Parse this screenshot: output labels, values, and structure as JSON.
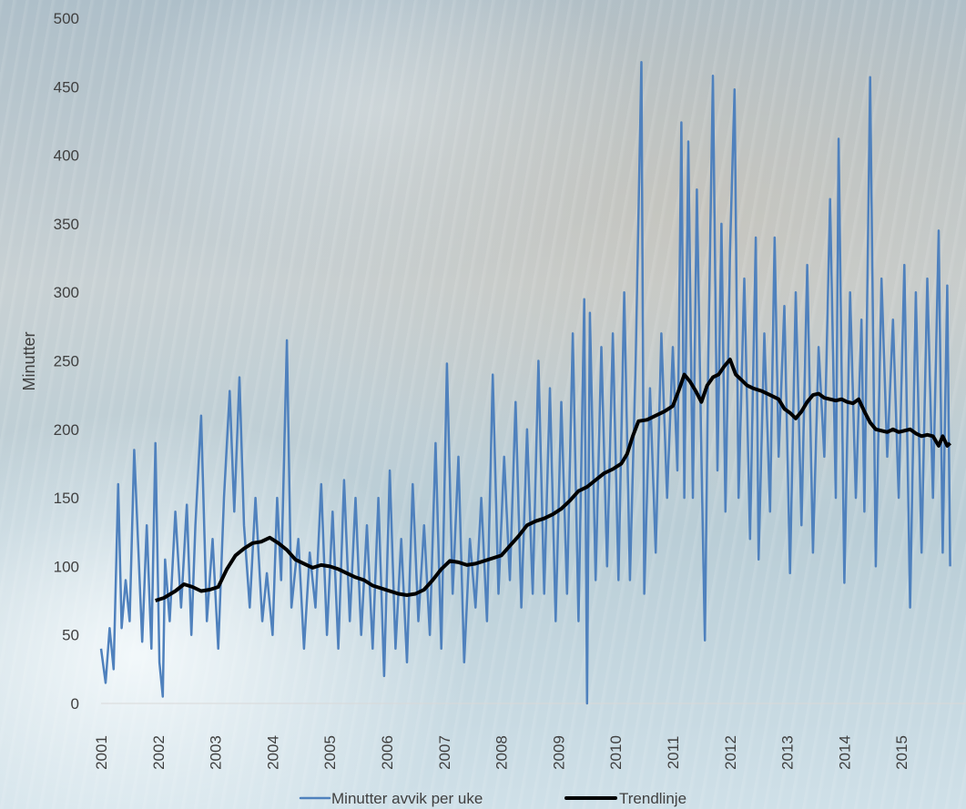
{
  "chart_data": {
    "type": "line",
    "ylabel": "Minutter",
    "ylim": [
      0,
      500
    ],
    "yticks": [
      "0",
      "50",
      "100",
      "150",
      "200",
      "250",
      "300",
      "350",
      "400",
      "450",
      "500"
    ],
    "xticks": [
      "2001",
      "2002",
      "2003",
      "2004",
      "2005",
      "2006",
      "2007",
      "2008",
      "2009",
      "2010",
      "2011",
      "2012",
      "2013",
      "2014",
      "2015"
    ],
    "xlim": [
      2001.0,
      2015.85
    ],
    "grid": false,
    "legend_position": "bottom",
    "series": [
      {
        "name": "Minutter avvik per uke",
        "color": "#4f81bd",
        "points": [
          [
            2001.0,
            40
          ],
          [
            2001.08,
            15
          ],
          [
            2001.15,
            55
          ],
          [
            2001.22,
            25
          ],
          [
            2001.3,
            160
          ],
          [
            2001.36,
            55
          ],
          [
            2001.43,
            90
          ],
          [
            2001.5,
            60
          ],
          [
            2001.58,
            185
          ],
          [
            2001.65,
            115
          ],
          [
            2001.72,
            45
          ],
          [
            2001.8,
            130
          ],
          [
            2001.88,
            40
          ],
          [
            2001.95,
            190
          ],
          [
            2002.02,
            30
          ],
          [
            2002.08,
            5
          ],
          [
            2002.12,
            105
          ],
          [
            2002.2,
            60
          ],
          [
            2002.3,
            140
          ],
          [
            2002.4,
            70
          ],
          [
            2002.5,
            145
          ],
          [
            2002.58,
            50
          ],
          [
            2002.65,
            130
          ],
          [
            2002.75,
            210
          ],
          [
            2002.85,
            60
          ],
          [
            2002.95,
            120
          ],
          [
            2003.05,
            40
          ],
          [
            2003.15,
            150
          ],
          [
            2003.25,
            228
          ],
          [
            2003.33,
            140
          ],
          [
            2003.42,
            238
          ],
          [
            2003.5,
            130
          ],
          [
            2003.6,
            70
          ],
          [
            2003.7,
            150
          ],
          [
            2003.82,
            60
          ],
          [
            2003.9,
            95
          ],
          [
            2004.0,
            50
          ],
          [
            2004.08,
            150
          ],
          [
            2004.15,
            90
          ],
          [
            2004.25,
            265
          ],
          [
            2004.33,
            70
          ],
          [
            2004.45,
            120
          ],
          [
            2004.55,
            40
          ],
          [
            2004.65,
            110
          ],
          [
            2004.75,
            70
          ],
          [
            2004.85,
            160
          ],
          [
            2004.95,
            50
          ],
          [
            2005.05,
            140
          ],
          [
            2005.15,
            40
          ],
          [
            2005.25,
            163
          ],
          [
            2005.35,
            60
          ],
          [
            2005.45,
            150
          ],
          [
            2005.55,
            50
          ],
          [
            2005.65,
            130
          ],
          [
            2005.75,
            40
          ],
          [
            2005.85,
            150
          ],
          [
            2005.95,
            20
          ],
          [
            2006.05,
            170
          ],
          [
            2006.15,
            40
          ],
          [
            2006.25,
            120
          ],
          [
            2006.35,
            30
          ],
          [
            2006.45,
            160
          ],
          [
            2006.55,
            60
          ],
          [
            2006.65,
            130
          ],
          [
            2006.75,
            50
          ],
          [
            2006.85,
            190
          ],
          [
            2006.95,
            40
          ],
          [
            2007.05,
            248
          ],
          [
            2007.15,
            80
          ],
          [
            2007.25,
            180
          ],
          [
            2007.35,
            30
          ],
          [
            2007.45,
            120
          ],
          [
            2007.55,
            70
          ],
          [
            2007.65,
            150
          ],
          [
            2007.75,
            60
          ],
          [
            2007.85,
            240
          ],
          [
            2007.95,
            80
          ],
          [
            2008.05,
            180
          ],
          [
            2008.15,
            90
          ],
          [
            2008.25,
            220
          ],
          [
            2008.35,
            70
          ],
          [
            2008.45,
            200
          ],
          [
            2008.55,
            80
          ],
          [
            2008.65,
            250
          ],
          [
            2008.75,
            80
          ],
          [
            2008.85,
            230
          ],
          [
            2008.95,
            60
          ],
          [
            2009.05,
            220
          ],
          [
            2009.15,
            80
          ],
          [
            2009.25,
            270
          ],
          [
            2009.35,
            60
          ],
          [
            2009.45,
            295
          ],
          [
            2009.5,
            0
          ],
          [
            2009.55,
            285
          ],
          [
            2009.65,
            90
          ],
          [
            2009.75,
            260
          ],
          [
            2009.85,
            100
          ],
          [
            2009.95,
            270
          ],
          [
            2010.05,
            90
          ],
          [
            2010.15,
            300
          ],
          [
            2010.25,
            90
          ],
          [
            2010.35,
            250
          ],
          [
            2010.45,
            468
          ],
          [
            2010.5,
            80
          ],
          [
            2010.6,
            230
          ],
          [
            2010.7,
            110
          ],
          [
            2010.8,
            270
          ],
          [
            2010.9,
            150
          ],
          [
            2011.0,
            260
          ],
          [
            2011.08,
            170
          ],
          [
            2011.15,
            424
          ],
          [
            2011.2,
            150
          ],
          [
            2011.27,
            410
          ],
          [
            2011.35,
            150
          ],
          [
            2011.42,
            375
          ],
          [
            2011.5,
            180
          ],
          [
            2011.56,
            46
          ],
          [
            2011.62,
            250
          ],
          [
            2011.7,
            458
          ],
          [
            2011.78,
            170
          ],
          [
            2011.85,
            350
          ],
          [
            2011.92,
            140
          ],
          [
            2012.0,
            330
          ],
          [
            2012.08,
            448
          ],
          [
            2012.15,
            150
          ],
          [
            2012.25,
            310
          ],
          [
            2012.35,
            120
          ],
          [
            2012.45,
            340
          ],
          [
            2012.5,
            105
          ],
          [
            2012.6,
            270
          ],
          [
            2012.7,
            140
          ],
          [
            2012.78,
            340
          ],
          [
            2012.85,
            180
          ],
          [
            2012.95,
            290
          ],
          [
            2013.05,
            95
          ],
          [
            2013.15,
            300
          ],
          [
            2013.25,
            130
          ],
          [
            2013.35,
            320
          ],
          [
            2013.45,
            110
          ],
          [
            2013.55,
            260
          ],
          [
            2013.65,
            180
          ],
          [
            2013.75,
            368
          ],
          [
            2013.85,
            150
          ],
          [
            2013.9,
            412
          ],
          [
            2014.0,
            88
          ],
          [
            2014.1,
            300
          ],
          [
            2014.2,
            150
          ],
          [
            2014.3,
            280
          ],
          [
            2014.35,
            140
          ],
          [
            2014.45,
            457
          ],
          [
            2014.55,
            100
          ],
          [
            2014.65,
            310
          ],
          [
            2014.75,
            180
          ],
          [
            2014.85,
            280
          ],
          [
            2014.95,
            150
          ],
          [
            2015.05,
            320
          ],
          [
            2015.15,
            70
          ],
          [
            2015.25,
            300
          ],
          [
            2015.35,
            110
          ],
          [
            2015.45,
            310
          ],
          [
            2015.55,
            150
          ],
          [
            2015.65,
            345
          ],
          [
            2015.72,
            110
          ],
          [
            2015.8,
            305
          ],
          [
            2015.85,
            100
          ]
        ]
      },
      {
        "name": "Trendlinje",
        "color": "#000000",
        "points": [
          [
            2001.95,
            75
          ],
          [
            2002.1,
            77
          ],
          [
            2002.3,
            82
          ],
          [
            2002.45,
            87
          ],
          [
            2002.6,
            85
          ],
          [
            2002.75,
            82
          ],
          [
            2002.9,
            83
          ],
          [
            2003.05,
            85
          ],
          [
            2003.2,
            98
          ],
          [
            2003.35,
            108
          ],
          [
            2003.5,
            113
          ],
          [
            2003.65,
            117
          ],
          [
            2003.8,
            118
          ],
          [
            2003.95,
            121
          ],
          [
            2004.1,
            117
          ],
          [
            2004.25,
            112
          ],
          [
            2004.4,
            105
          ],
          [
            2004.55,
            102
          ],
          [
            2004.7,
            99
          ],
          [
            2004.85,
            101
          ],
          [
            2005.0,
            100
          ],
          [
            2005.15,
            98
          ],
          [
            2005.3,
            95
          ],
          [
            2005.45,
            92
          ],
          [
            2005.6,
            90
          ],
          [
            2005.75,
            86
          ],
          [
            2005.9,
            84
          ],
          [
            2006.05,
            82
          ],
          [
            2006.2,
            80
          ],
          [
            2006.35,
            79
          ],
          [
            2006.5,
            80
          ],
          [
            2006.65,
            83
          ],
          [
            2006.8,
            90
          ],
          [
            2006.95,
            98
          ],
          [
            2007.1,
            104
          ],
          [
            2007.25,
            103
          ],
          [
            2007.4,
            101
          ],
          [
            2007.55,
            102
          ],
          [
            2007.7,
            104
          ],
          [
            2007.85,
            106
          ],
          [
            2008.0,
            108
          ],
          [
            2008.15,
            115
          ],
          [
            2008.3,
            122
          ],
          [
            2008.45,
            130
          ],
          [
            2008.6,
            133
          ],
          [
            2008.75,
            135
          ],
          [
            2008.9,
            138
          ],
          [
            2009.05,
            142
          ],
          [
            2009.2,
            148
          ],
          [
            2009.35,
            155
          ],
          [
            2009.5,
            158
          ],
          [
            2009.65,
            163
          ],
          [
            2009.8,
            168
          ],
          [
            2009.95,
            171
          ],
          [
            2010.1,
            175
          ],
          [
            2010.2,
            182
          ],
          [
            2010.3,
            195
          ],
          [
            2010.4,
            206
          ],
          [
            2010.55,
            207
          ],
          [
            2010.7,
            210
          ],
          [
            2010.85,
            213
          ],
          [
            2011.0,
            217
          ],
          [
            2011.1,
            228
          ],
          [
            2011.2,
            240
          ],
          [
            2011.3,
            235
          ],
          [
            2011.4,
            228
          ],
          [
            2011.5,
            220
          ],
          [
            2011.6,
            232
          ],
          [
            2011.7,
            238
          ],
          [
            2011.8,
            240
          ],
          [
            2011.9,
            246
          ],
          [
            2012.0,
            251
          ],
          [
            2012.1,
            240
          ],
          [
            2012.2,
            236
          ],
          [
            2012.3,
            232
          ],
          [
            2012.4,
            230
          ],
          [
            2012.55,
            228
          ],
          [
            2012.7,
            225
          ],
          [
            2012.85,
            222
          ],
          [
            2012.95,
            215
          ],
          [
            2013.05,
            212
          ],
          [
            2013.15,
            208
          ],
          [
            2013.25,
            213
          ],
          [
            2013.35,
            220
          ],
          [
            2013.45,
            225
          ],
          [
            2013.55,
            226
          ],
          [
            2013.65,
            223
          ],
          [
            2013.75,
            222
          ],
          [
            2013.85,
            221
          ],
          [
            2013.95,
            222
          ],
          [
            2014.05,
            220
          ],
          [
            2014.15,
            219
          ],
          [
            2014.25,
            222
          ],
          [
            2014.35,
            213
          ],
          [
            2014.45,
            205
          ],
          [
            2014.55,
            200
          ],
          [
            2014.65,
            199
          ],
          [
            2014.75,
            198
          ],
          [
            2014.85,
            200
          ],
          [
            2014.95,
            198
          ],
          [
            2015.05,
            199
          ],
          [
            2015.15,
            200
          ],
          [
            2015.25,
            197
          ],
          [
            2015.35,
            195
          ],
          [
            2015.45,
            196
          ],
          [
            2015.55,
            195
          ],
          [
            2015.65,
            188
          ],
          [
            2015.72,
            195
          ],
          [
            2015.8,
            188
          ],
          [
            2015.85,
            190
          ]
        ]
      }
    ]
  }
}
